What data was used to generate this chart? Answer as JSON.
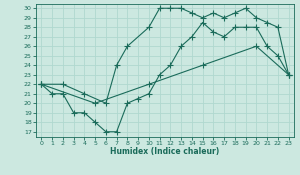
{
  "xlabel": "Humidex (Indice chaleur)",
  "ylabel": "",
  "xlim": [
    -0.5,
    23.5
  ],
  "ylim": [
    16.5,
    30.5
  ],
  "xticks": [
    0,
    1,
    2,
    3,
    4,
    5,
    6,
    7,
    8,
    9,
    10,
    11,
    12,
    13,
    14,
    15,
    16,
    17,
    18,
    19,
    20,
    21,
    22,
    23
  ],
  "yticks": [
    17,
    18,
    19,
    20,
    21,
    22,
    23,
    24,
    25,
    26,
    27,
    28,
    29,
    30
  ],
  "bg_color": "#cce8e0",
  "grid_color": "#b0d8cf",
  "line_color": "#1a6b5a",
  "line1_x": [
    0,
    1,
    2,
    3,
    4,
    5,
    6,
    7,
    8,
    9,
    10,
    11,
    12,
    13,
    14,
    15,
    16,
    17,
    18,
    19,
    20,
    21,
    22,
    23
  ],
  "line1_y": [
    22,
    21,
    21,
    19,
    19,
    18,
    17,
    17,
    20,
    20.5,
    21,
    23,
    24,
    26,
    27,
    28.5,
    27.5,
    27,
    28,
    28,
    28,
    26,
    25,
    23
  ],
  "line2_x": [
    0,
    2,
    4,
    6,
    7,
    8,
    10,
    11,
    12,
    13,
    14,
    15,
    16,
    17,
    18,
    19,
    20,
    21,
    22,
    23
  ],
  "line2_y": [
    22,
    22,
    21,
    20,
    24,
    26,
    28,
    30,
    30,
    30,
    29.5,
    29,
    29.5,
    29,
    29.5,
    30,
    29,
    28.5,
    28,
    23
  ],
  "line3_x": [
    0,
    5,
    10,
    15,
    20,
    23
  ],
  "line3_y": [
    22,
    20,
    22,
    24,
    26,
    23
  ]
}
